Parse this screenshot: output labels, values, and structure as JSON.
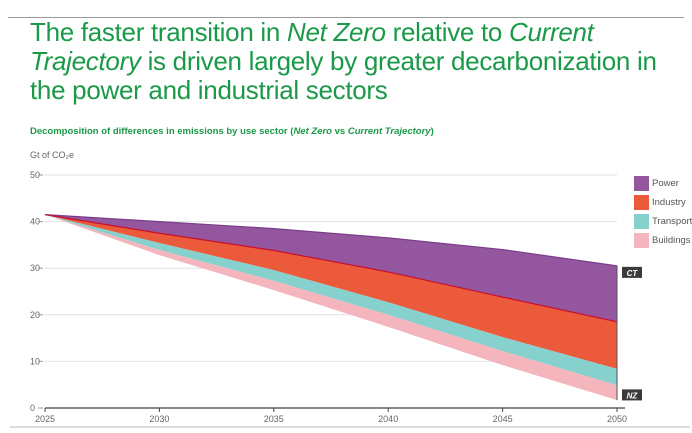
{
  "title": {
    "part1": "The faster transition in ",
    "em1": "Net Zero",
    "part2": " relative to ",
    "em2": "Current Trajectory",
    "part3": " is driven largely by greater decarbonization in the power and industrial sectors"
  },
  "subtitle": {
    "part1": "Decomposition of differences in emissions by use sector (",
    "em1": "Net Zero",
    "part2": " vs ",
    "em2": "Current Trajectory",
    "part3": ")"
  },
  "chart_data": {
    "type": "area",
    "ylabel": "Gt of CO₂e",
    "ylim": [
      0,
      50
    ],
    "yticks": [
      0,
      10,
      20,
      30,
      40,
      50
    ],
    "x": [
      2025,
      2030,
      2035,
      2040,
      2045,
      2050
    ],
    "xticks": [
      "2025",
      "2030",
      "2035",
      "2040",
      "2045",
      "2050"
    ],
    "grid": true,
    "legend_placement": "right",
    "boundaries": {
      "current_trajectory": [
        41.5,
        40,
        38.5,
        36.5,
        34,
        30.5
      ],
      "power_bottom": [
        41.5,
        37.5,
        33.8,
        29.2,
        23.8,
        18.5
      ],
      "industry_bottom": [
        41.5,
        35.4,
        29.6,
        22.7,
        15.2,
        8.4
      ],
      "transport_bottom": [
        41.5,
        33.9,
        27.3,
        20,
        12.2,
        4.9
      ],
      "net_zero": [
        41.5,
        32.8,
        25.3,
        17.4,
        9.2,
        1.7
      ]
    },
    "series": [
      {
        "name": "Power",
        "color": "#93569f",
        "top": "current_trajectory",
        "bottom": "power_bottom"
      },
      {
        "name": "Industry",
        "color": "#ec5a3c",
        "top": "power_bottom",
        "bottom": "industry_bottom"
      },
      {
        "name": "Transport",
        "color": "#86d0ce",
        "top": "industry_bottom",
        "bottom": "transport_bottom"
      },
      {
        "name": "Buildings",
        "color": "#f4b5bd",
        "top": "transport_bottom",
        "bottom": "net_zero"
      }
    ],
    "end_labels": {
      "ct": "CT",
      "nz": "NZ"
    }
  }
}
